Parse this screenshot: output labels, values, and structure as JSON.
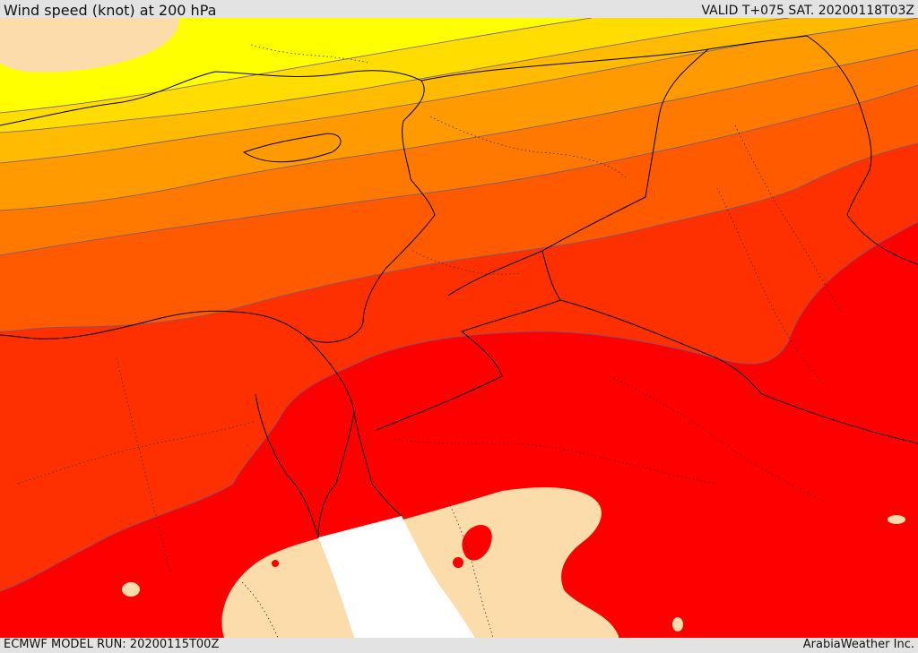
{
  "header": {
    "title": "Wind speed (knot) at 200 hPa",
    "valid": "VALID T+075 SAT. 20200118T03Z"
  },
  "footer": {
    "model_run": "ECMWF MODEL RUN: 20200115T00Z",
    "credit": "ArabiaWeather Inc."
  },
  "colors": {
    "band_1": "#ffff00",
    "band_2": "#ffdd00",
    "band_3": "#ffbb00",
    "band_4": "#ff9a00",
    "band_5": "#ff7800",
    "band_6": "#ff5a00",
    "band_7": "#ff3000",
    "band_8": "#ff0000",
    "low_wind": "#fcdcaa",
    "sea": "#ffffff"
  }
}
